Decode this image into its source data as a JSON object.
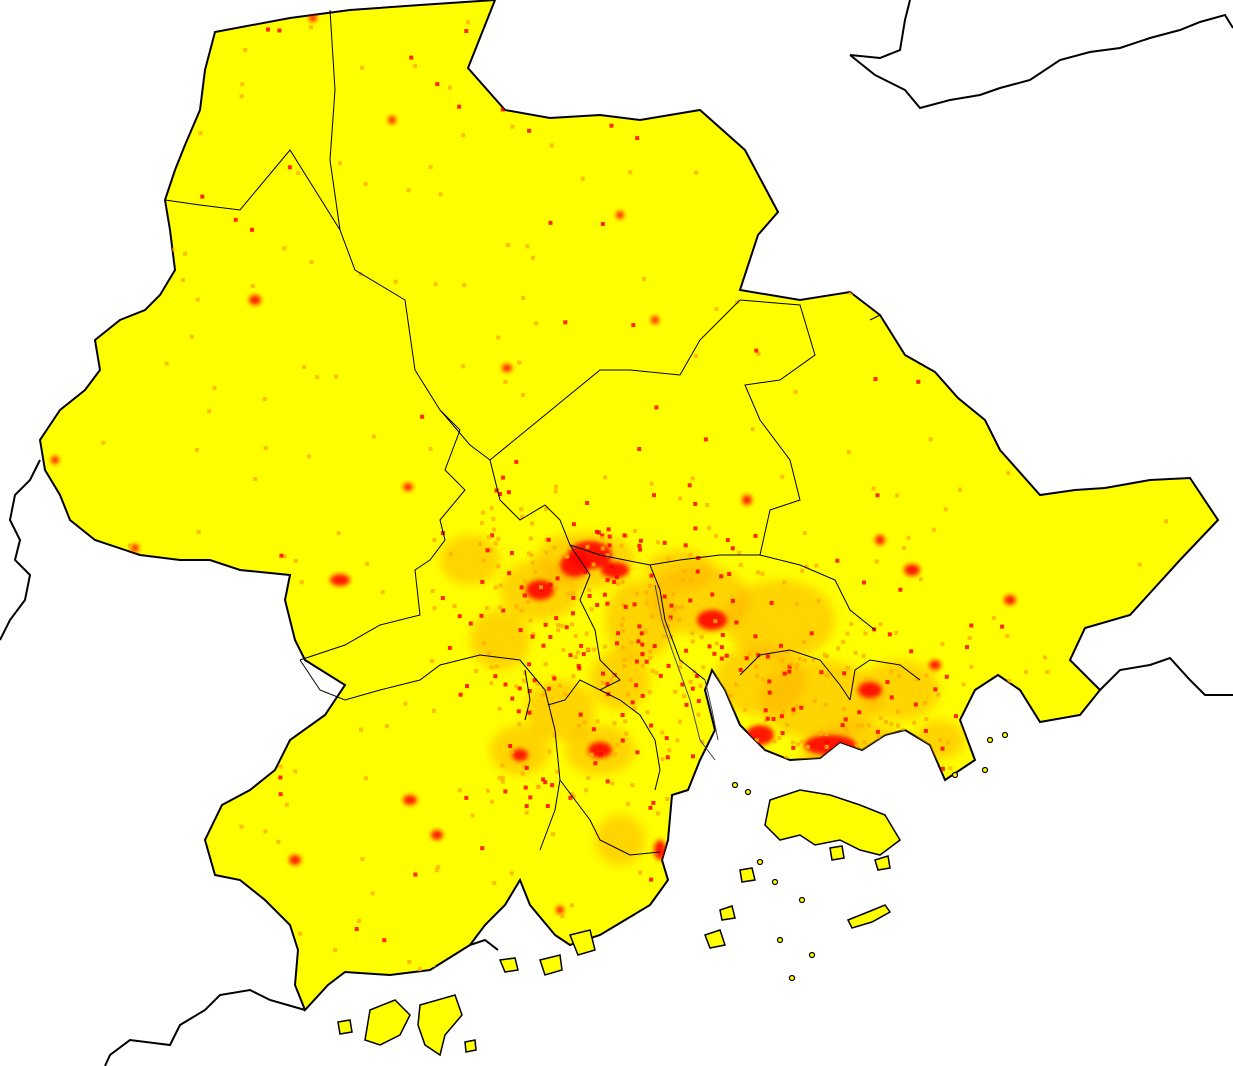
{
  "map": {
    "type": "choropleth-raster",
    "colors": {
      "background": "#ffffff",
      "land_low": "#ffff00",
      "land_mid": "#ffb000",
      "land_high": "#ff0000",
      "boundary": "#000000"
    },
    "text_labels": []
  }
}
